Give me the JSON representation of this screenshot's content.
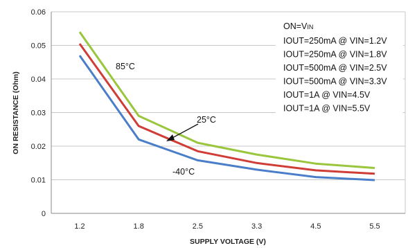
{
  "chart_data": {
    "type": "line",
    "xlabel": "SUPPLY VOLTAGE (V)",
    "ylabel": "ON RESISTANCE (Ohm)",
    "x": [
      1.2,
      1.8,
      2.5,
      3.3,
      4.5,
      5.5
    ],
    "x_tick_labels": [
      "1.2",
      "1.8",
      "2.5",
      "3.3",
      "4.5",
      "5.5"
    ],
    "y_ticks": [
      "0",
      "0.01",
      "0.02",
      "0.03",
      "0.04",
      "0.05",
      "0.06"
    ],
    "ylim": [
      0,
      0.06
    ],
    "grid": true,
    "series": [
      {
        "name": "85°C",
        "color": "#99c63c",
        "values": [
          0.054,
          0.029,
          0.021,
          0.0175,
          0.0148,
          0.0135
        ]
      },
      {
        "name": "25°C",
        "color": "#d03c36",
        "values": [
          0.0505,
          0.026,
          0.0185,
          0.015,
          0.0128,
          0.0118
        ]
      },
      {
        "name": "-40°C",
        "color": "#4a7ec9",
        "values": [
          0.047,
          0.022,
          0.0158,
          0.013,
          0.0108,
          0.0099
        ]
      }
    ],
    "annotations": {
      "conditions": [
        "IOUT=250mA @ VIN=1.2V",
        "IOUT=250mA @ VIN=1.8V",
        "IOUT=500mA @ VIN=2.5V",
        "IOUT=500mA @ VIN=3.3V",
        "IOUT=1A @ VIN=4.5V",
        "IOUT=1A @ VIN=5.5V"
      ],
      "on_label_prefix": "ON=V",
      "on_label_sub": "IN"
    }
  }
}
